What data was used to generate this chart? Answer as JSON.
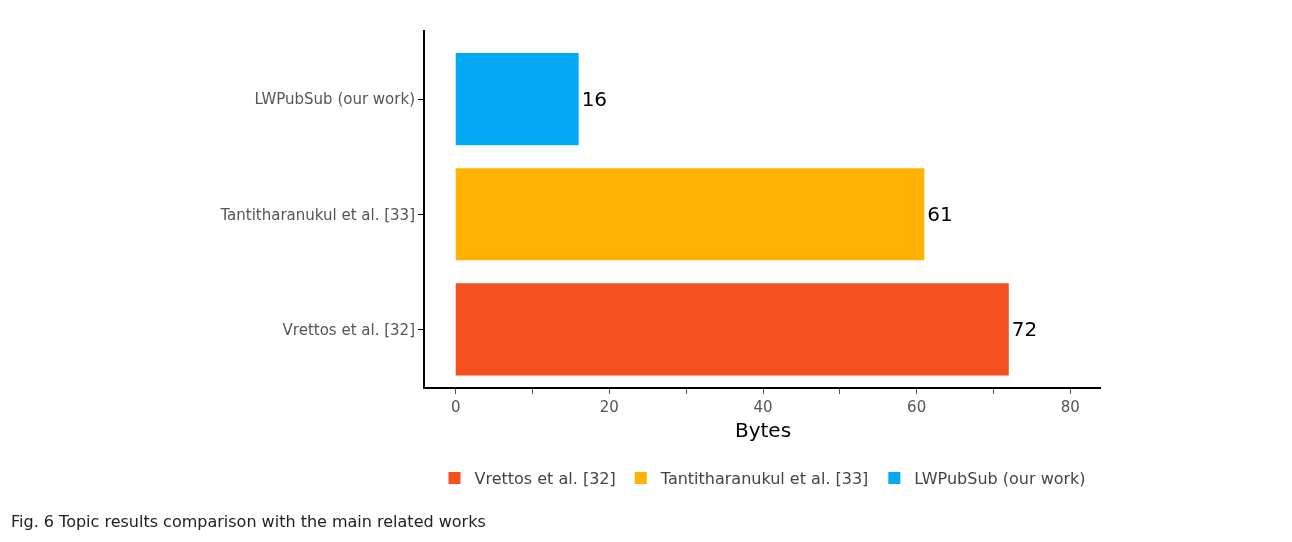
{
  "chart_data": {
    "type": "bar",
    "orientation": "horizontal",
    "xlabel": "Bytes",
    "categories": [
      "LWPubSub (our work)",
      "Tantitharanukul et al. [33]",
      "Vrettos et al. [32]"
    ],
    "series": [
      {
        "name": "Vrettos et al. [32]",
        "color": "#f4511e",
        "values": [
          null,
          null,
          72
        ]
      },
      {
        "name": "Tantitharanukul et al. [33]",
        "color": "#ffb300",
        "values": [
          null,
          61,
          null
        ]
      },
      {
        "name": "LWPubSub (our work)",
        "color": "#03a9f4",
        "values": [
          16,
          null,
          null
        ]
      }
    ],
    "xlim": [
      -4,
      84
    ],
    "xticks": [
      0,
      {
        "value": 10,
        "label": null
      },
      20,
      {
        "value": 30,
        "label": null
      },
      40,
      {
        "value": 50,
        "label": null
      },
      60,
      {
        "value": 70,
        "label": null
      },
      80
    ],
    "data_labels": true,
    "grid": false,
    "legend": "bottom",
    "annotations": [
      "Fig. 6 Topic results comparison with the main related works"
    ]
  }
}
